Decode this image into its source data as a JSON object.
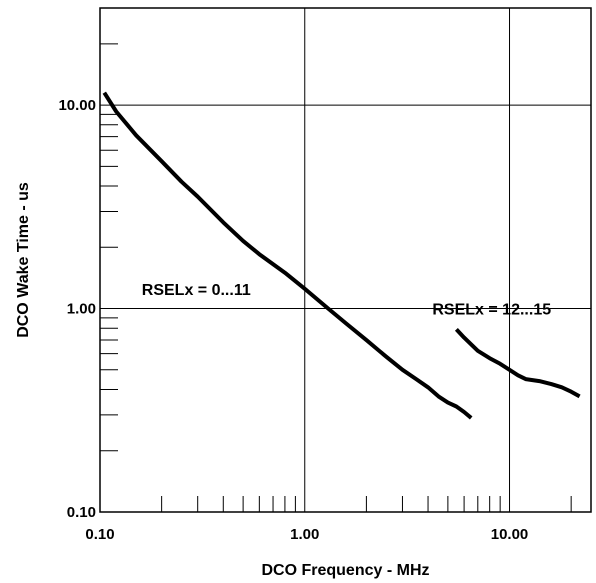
{
  "chart_data": {
    "type": "line",
    "xlabel": "DCO Frequency - MHz",
    "ylabel": "DCO Wake Time - us",
    "x_scale": "log",
    "y_scale": "log",
    "xlim": [
      0.1,
      25
    ],
    "ylim": [
      0.1,
      30
    ],
    "grid": true,
    "x_ticks": [
      {
        "value": 0.1,
        "label": "0.10"
      },
      {
        "value": 1,
        "label": "1.00"
      },
      {
        "value": 10,
        "label": "10.00"
      }
    ],
    "y_ticks": [
      {
        "value": 0.1,
        "label": "0.10"
      },
      {
        "value": 1,
        "label": "1.00"
      },
      {
        "value": 10,
        "label": "10.00"
      }
    ],
    "annotations": [
      {
        "text": "RSELx = 0...11",
        "x": 0.16,
        "y": 1.25
      },
      {
        "text": "RSELx = 12...15",
        "x": 4.2,
        "y": 1.0
      }
    ],
    "series": [
      {
        "x": [
          0.105,
          0.12,
          0.15,
          0.2,
          0.25,
          0.3,
          0.4,
          0.5,
          0.6,
          0.8,
          1.0,
          1.3,
          1.6,
          2.0,
          2.5,
          3.0,
          3.5,
          4.0,
          4.5,
          5.0,
          5.5,
          6.0,
          6.5
        ],
        "y": [
          11.5,
          9.3,
          7.1,
          5.3,
          4.2,
          3.55,
          2.65,
          2.15,
          1.85,
          1.5,
          1.25,
          1.0,
          0.84,
          0.7,
          0.58,
          0.5,
          0.45,
          0.41,
          0.37,
          0.345,
          0.33,
          0.31,
          0.29
        ]
      },
      {
        "x": [
          5.5,
          6.0,
          7.0,
          8.0,
          9.0,
          10.0,
          11.0,
          12.0,
          14.0,
          16.0,
          18.0,
          20.0,
          22.0
        ],
        "y": [
          0.79,
          0.72,
          0.62,
          0.57,
          0.535,
          0.5,
          0.47,
          0.45,
          0.44,
          0.425,
          0.41,
          0.39,
          0.37
        ]
      }
    ]
  }
}
